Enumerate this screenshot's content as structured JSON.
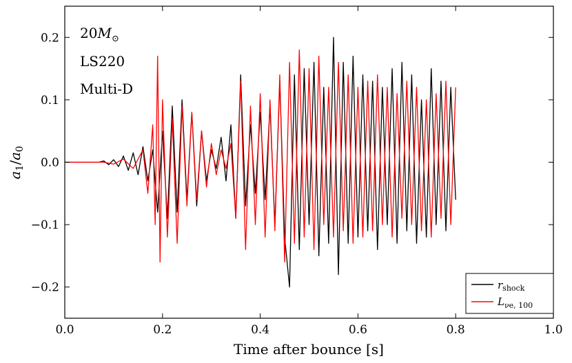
{
  "chart_data": {
    "type": "line",
    "title": "",
    "xlabel": "Time after bounce [s]",
    "ylabel": "a_1/a_0",
    "ylabel_parts": {
      "base": "a",
      "sub1": "1",
      "slash": "/",
      "base2": "a",
      "sub2": "0"
    },
    "xlim": [
      0.0,
      1.0
    ],
    "ylim": [
      -0.25,
      0.25
    ],
    "xticks": [
      0.0,
      0.2,
      0.4,
      0.6,
      0.8,
      1.0
    ],
    "xtick_labels": [
      "0.0",
      "0.2",
      "0.4",
      "0.6",
      "0.8",
      "1.0"
    ],
    "yticks": [
      -0.2,
      -0.1,
      0.0,
      0.1,
      0.2
    ],
    "ytick_labels": [
      "−0.2",
      "−0.1",
      "0.0",
      "0.1",
      "0.2"
    ],
    "grid": false,
    "legend_position": "bottom-right",
    "annotations": [
      {
        "text": "20",
        "math_part": "M",
        "subscript": "⊙"
      },
      {
        "text": "LS220"
      },
      {
        "text": "Multi-D"
      }
    ],
    "series": [
      {
        "name": "r_shock",
        "name_parts": {
          "base": "r",
          "sub": "shock"
        },
        "color": "#000000",
        "x": [
          0.0,
          0.07,
          0.08,
          0.09,
          0.1,
          0.11,
          0.12,
          0.13,
          0.14,
          0.15,
          0.16,
          0.17,
          0.18,
          0.19,
          0.2,
          0.21,
          0.22,
          0.23,
          0.24,
          0.25,
          0.26,
          0.27,
          0.28,
          0.29,
          0.3,
          0.31,
          0.32,
          0.33,
          0.34,
          0.35,
          0.36,
          0.37,
          0.38,
          0.39,
          0.4,
          0.41,
          0.42,
          0.43,
          0.44,
          0.45,
          0.46,
          0.47,
          0.48,
          0.49,
          0.5,
          0.51,
          0.52,
          0.53,
          0.54,
          0.55,
          0.56,
          0.57,
          0.58,
          0.59,
          0.6,
          0.61,
          0.62,
          0.63,
          0.64,
          0.65,
          0.66,
          0.67,
          0.68,
          0.69,
          0.7,
          0.71,
          0.72,
          0.73,
          0.74,
          0.75,
          0.76,
          0.77,
          0.78,
          0.79,
          0.8
        ],
        "y": [
          0.0,
          0.0,
          0.002,
          -0.004,
          0.004,
          -0.007,
          0.01,
          -0.013,
          0.015,
          -0.02,
          0.025,
          -0.03,
          0.02,
          -0.08,
          0.05,
          -0.09,
          0.09,
          -0.08,
          0.1,
          -0.06,
          0.08,
          -0.07,
          0.05,
          -0.03,
          0.02,
          -0.01,
          0.04,
          -0.03,
          0.06,
          -0.09,
          0.14,
          -0.07,
          0.06,
          -0.05,
          0.08,
          -0.06,
          0.09,
          -0.1,
          0.13,
          -0.12,
          -0.2,
          0.14,
          -0.14,
          0.15,
          -0.1,
          0.16,
          -0.15,
          0.12,
          -0.13,
          0.2,
          -0.18,
          0.16,
          -0.13,
          0.17,
          -0.12,
          0.14,
          -0.11,
          0.13,
          -0.14,
          0.12,
          -0.1,
          0.15,
          -0.13,
          0.16,
          -0.11,
          0.14,
          -0.13,
          0.1,
          -0.12,
          0.15,
          -0.1,
          0.13,
          -0.11,
          0.12,
          -0.06
        ]
      },
      {
        "name": "L_{νe,100}",
        "name_parts": {
          "base": "L",
          "sub": "νe, 100"
        },
        "color": "#ff0000",
        "x": [
          0.0,
          0.08,
          0.1,
          0.12,
          0.14,
          0.16,
          0.17,
          0.18,
          0.185,
          0.19,
          0.195,
          0.2,
          0.21,
          0.22,
          0.23,
          0.24,
          0.25,
          0.26,
          0.27,
          0.28,
          0.29,
          0.3,
          0.31,
          0.32,
          0.33,
          0.34,
          0.35,
          0.36,
          0.37,
          0.38,
          0.39,
          0.4,
          0.41,
          0.42,
          0.43,
          0.44,
          0.45,
          0.46,
          0.47,
          0.48,
          0.49,
          0.5,
          0.51,
          0.52,
          0.53,
          0.54,
          0.55,
          0.56,
          0.57,
          0.58,
          0.59,
          0.6,
          0.61,
          0.62,
          0.63,
          0.64,
          0.65,
          0.66,
          0.67,
          0.68,
          0.69,
          0.7,
          0.71,
          0.72,
          0.73,
          0.74,
          0.75,
          0.76,
          0.77,
          0.78,
          0.79,
          0.8
        ],
        "y": [
          0.0,
          0.0,
          -0.003,
          0.005,
          -0.01,
          0.02,
          -0.05,
          0.06,
          -0.1,
          0.17,
          -0.16,
          0.1,
          -0.12,
          0.07,
          -0.13,
          0.09,
          -0.07,
          0.08,
          -0.06,
          0.05,
          -0.04,
          0.03,
          -0.02,
          0.02,
          -0.01,
          0.03,
          -0.09,
          0.13,
          -0.14,
          0.09,
          -0.1,
          0.11,
          -0.12,
          0.1,
          -0.11,
          0.14,
          -0.16,
          0.16,
          -0.13,
          0.18,
          -0.12,
          0.15,
          -0.14,
          0.17,
          -0.1,
          0.12,
          -0.12,
          0.16,
          -0.11,
          0.14,
          -0.13,
          0.12,
          -0.12,
          0.13,
          -0.11,
          0.14,
          -0.1,
          0.12,
          -0.12,
          0.11,
          -0.09,
          0.13,
          -0.1,
          0.12,
          -0.11,
          0.1,
          -0.12,
          0.11,
          -0.09,
          0.13,
          -0.1,
          0.12
        ]
      }
    ]
  }
}
